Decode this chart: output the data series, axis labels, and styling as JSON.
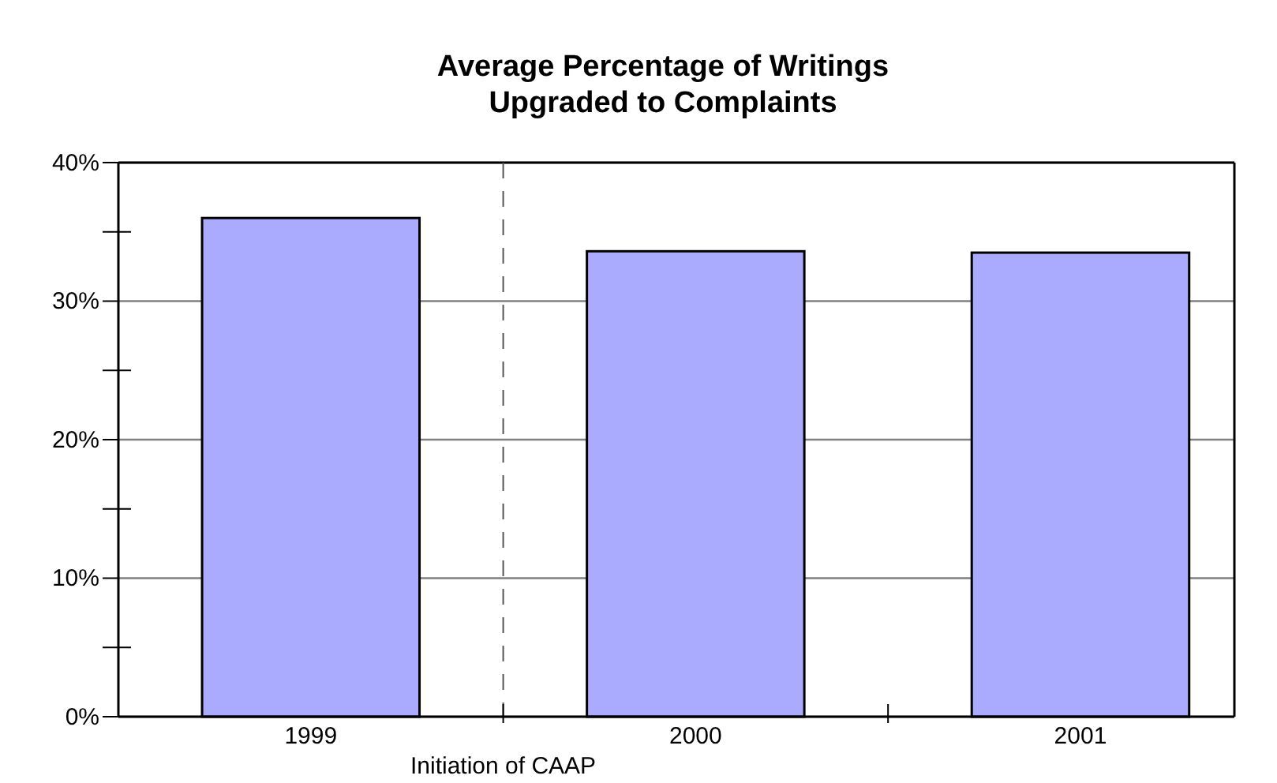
{
  "chart_data": {
    "type": "bar",
    "title": "Average Percentage of Writings\nUpgraded to Complaints",
    "x": [
      1999,
      2000,
      2001
    ],
    "values": [
      36,
      33.6,
      33.5
    ],
    "color": "#aaaaff",
    "xlim": [
      1998.5,
      2001.4
    ],
    "xticks": [
      1999,
      2000,
      2001,
      {
        "value": 1999.5,
        "label": null
      },
      {
        "value": 2000.5,
        "label": null
      }
    ],
    "ylim": [
      0,
      40
    ],
    "yticks": [
      {
        "value": 0,
        "label": "0%"
      },
      {
        "value": 5,
        "label": null
      },
      {
        "value": 10,
        "label": "10%"
      },
      {
        "value": 15,
        "label": null
      },
      {
        "value": 20,
        "label": "20%"
      },
      {
        "value": 25,
        "label": null
      },
      {
        "value": 30,
        "label": "30%"
      },
      {
        "value": 35,
        "label": null
      },
      {
        "value": 40,
        "label": "40%"
      }
    ],
    "grid": "y",
    "ref_lines": [
      {
        "axis": "x",
        "value": 1999.5,
        "label": "Initiation of CAAP",
        "line_style": "dashed",
        "color": "#555555"
      }
    ]
  }
}
